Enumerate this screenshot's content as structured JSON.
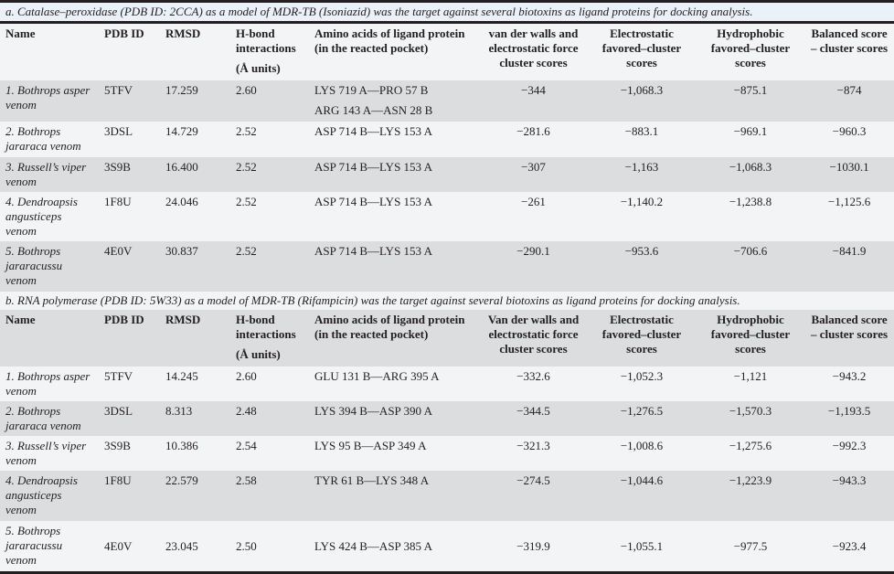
{
  "columns_a": [
    "Name",
    "PDB ID",
    "RMSD",
    "H-bond interactions",
    "(Å units)",
    "Amino acids of ligand protein (in the reacted pocket)",
    "van der walls and electrostatic force cluster scores",
    "Electrostatic favored–cluster scores",
    "Hydrophobic favored–cluster scores",
    "Balanced score – cluster scores"
  ],
  "columns_b": [
    "Name",
    "PDB ID",
    "RMSD",
    "H-bond interactions",
    "(Å units)",
    "Amino acids of ligand protein (in the reacted pocket)",
    "Van der walls and electrostatic force cluster scores",
    "Electrostatic favored–cluster scores",
    "Hydrophobic favored–cluster scores",
    "Balanced score – cluster scores"
  ],
  "section_a": {
    "caption": "a. Catalase–peroxidase (PDB ID: 2CCA) as a model of MDR-TB (Isoniazid) was the target against several biotoxins as ligand proteins for docking analysis.",
    "rows": [
      {
        "name": "1. Bothrops asper venom",
        "pdb": "5TFV",
        "rmsd": "17.259",
        "hbond": "2.60",
        "amino": "LYS 719 A—PRO 57 B",
        "amino2": "ARG 143 A—ASN 28 B",
        "vdw": "−344",
        "elec": "−1,068.3",
        "hydro": "−875.1",
        "bal": "−874"
      },
      {
        "name": "2. Bothrops jararaca venom",
        "pdb": "3DSL",
        "rmsd": "14.729",
        "hbond": "2.52",
        "amino": "ASP 714 B—LYS 153 A",
        "vdw": "−281.6",
        "elec": "−883.1",
        "hydro": "−969.1",
        "bal": "−960.3"
      },
      {
        "name": "3. Russell’s viper venom",
        "pdb": "3S9B",
        "rmsd": "16.400",
        "hbond": "2.52",
        "amino": "ASP 714 B—LYS 153 A",
        "vdw": "−307",
        "elec": "−1,163",
        "hydro": "−1,068.3",
        "bal": "−1030.1"
      },
      {
        "name": "4. Dendroapsis angusticeps venom",
        "pdb": "1F8U",
        "rmsd": "24.046",
        "hbond": "2.52",
        "amino": "ASP 714 B—LYS 153 A",
        "vdw": "−261",
        "elec": "−1,140.2",
        "hydro": "−1,238.8",
        "bal": "−1,125.6"
      },
      {
        "name": "5. Bothrops jararacussu venom",
        "pdb": "4E0V",
        "rmsd": "30.837",
        "hbond": "2.52",
        "amino": "ASP 714 B—LYS 153 A",
        "vdw": "−290.1",
        "elec": "−953.6",
        "hydro": "−706.6",
        "bal": "−841.9"
      }
    ]
  },
  "section_b": {
    "caption": "b. RNA polymerase (PDB ID: 5W33) as a model of MDR-TB (Rifampicin) was the target against several biotoxins as ligand proteins for docking analysis.",
    "rows": [
      {
        "name": "1. Bothrops asper venom",
        "pdb": "5TFV",
        "rmsd": "14.245",
        "hbond": "2.60",
        "amino": "GLU 131 B—ARG 395 A",
        "vdw": "−332.6",
        "elec": "−1,052.3",
        "hydro": "−1,121",
        "bal": "−943.2"
      },
      {
        "name": "2. Bothrops jararaca venom",
        "pdb": "3DSL",
        "rmsd": "8.313",
        "hbond": "2.48",
        "amino": "LYS 394 B—ASP 390 A",
        "vdw": "−344.5",
        "elec": "−1,276.5",
        "hydro": "−1,570.3",
        "bal": "−1,193.5"
      },
      {
        "name": "3. Russell’s viper venom",
        "pdb": "3S9B",
        "rmsd": "10.386",
        "hbond": "2.54",
        "amino": "LYS 95 B—ASP 349 A",
        "vdw": "−321.3",
        "elec": "−1,008.6",
        "hydro": "−1,275.6",
        "bal": "−992.3"
      },
      {
        "name": "4. Dendroapsis angusticeps venom",
        "pdb": "1F8U",
        "rmsd": "22.579",
        "hbond": "2.58",
        "amino": "TYR 61 B—LYS 348 A",
        "vdw": "−274.5",
        "elec": "−1,044.6",
        "hydro": "−1,223.9",
        "bal": "−943.3"
      },
      {
        "name": "5. Bothrops jararacussu venom",
        "pdb": "4E0V",
        "rmsd": "23.045",
        "hbond": "2.50",
        "amino": "LYS 424 B—ASP 385 A",
        "vdw": "−319.9",
        "elec": "−1,055.1",
        "hydro": "−977.5",
        "bal": "−923.4"
      }
    ]
  }
}
